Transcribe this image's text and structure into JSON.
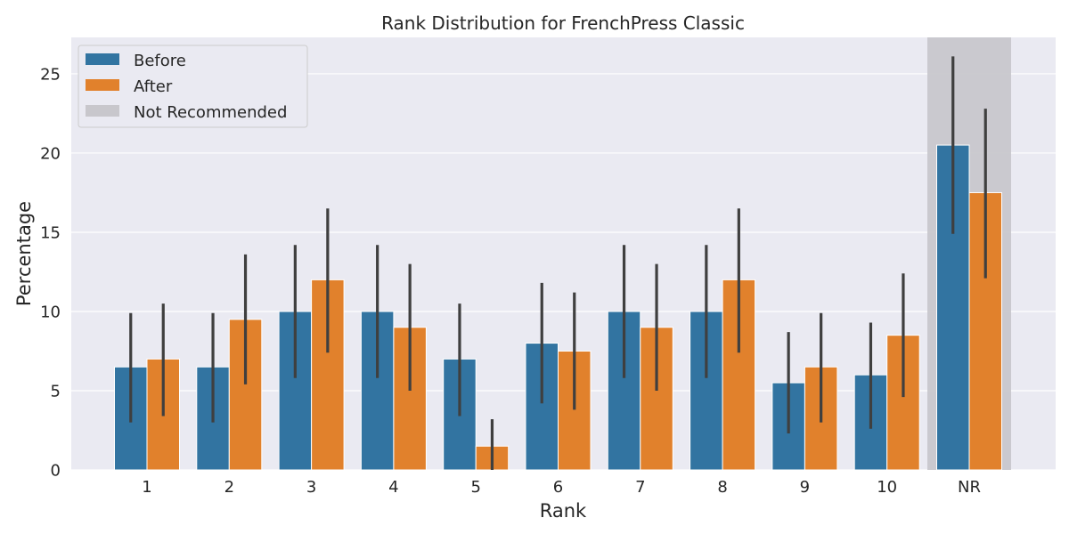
{
  "chart_data": {
    "type": "bar",
    "title": "Rank Distribution for FrenchPress Classic",
    "xlabel": "Rank",
    "ylabel": "Percentage",
    "categories": [
      "1",
      "2",
      "3",
      "4",
      "5",
      "6",
      "7",
      "8",
      "9",
      "10",
      "NR"
    ],
    "ylim": [
      0,
      27.3
    ],
    "yticks": [
      0,
      5,
      10,
      15,
      20,
      25
    ],
    "grid": true,
    "legend_position": "top-left",
    "series": [
      {
        "name": "Before",
        "color": "#3274a1",
        "values": [
          6.5,
          6.5,
          10,
          10,
          7,
          8,
          10,
          10,
          5.5,
          6,
          20.5
        ],
        "ci_low": [
          3,
          3,
          5.8,
          5.8,
          3.4,
          4.2,
          5.8,
          5.8,
          2.3,
          2.6,
          14.9
        ],
        "ci_high": [
          9.9,
          9.9,
          14.2,
          14.2,
          10.5,
          11.8,
          14.2,
          14.2,
          8.7,
          9.3,
          26.1
        ]
      },
      {
        "name": "After",
        "color": "#e1812c",
        "values": [
          7,
          9.5,
          12,
          9,
          1.5,
          7.5,
          9,
          12,
          6.5,
          8.5,
          17.5
        ],
        "ci_low": [
          3.4,
          5.4,
          7.4,
          5,
          0,
          3.8,
          5,
          7.4,
          3,
          4.6,
          12.1
        ],
        "ci_high": [
          10.5,
          13.6,
          16.5,
          13,
          3.2,
          11.2,
          13,
          16.5,
          9.9,
          12.4,
          22.8
        ]
      }
    ],
    "highlight": {
      "category": "NR",
      "label": "Not Recommended",
      "color": "#c8c7cc"
    }
  }
}
